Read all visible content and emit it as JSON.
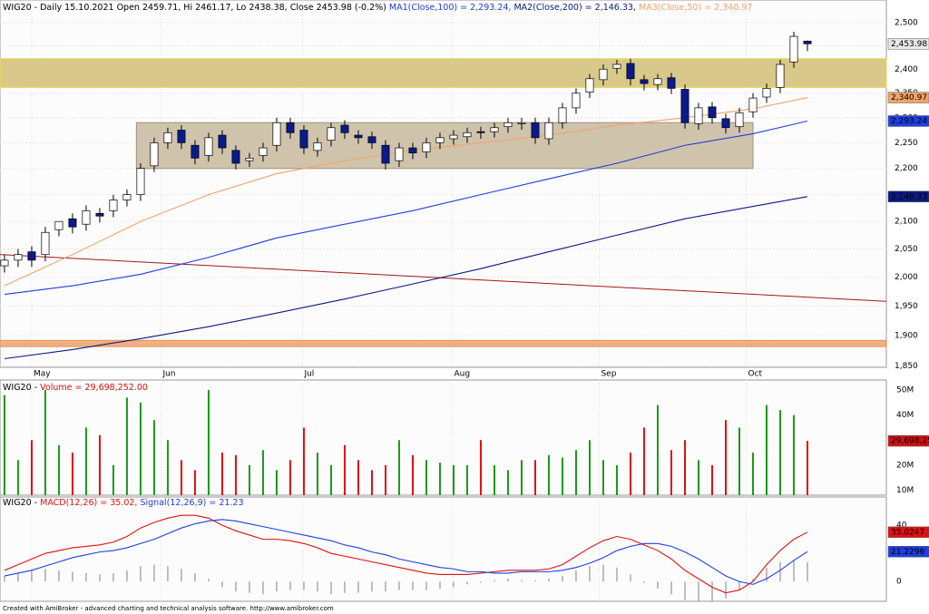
{
  "chart_data": [
    {
      "type": "candlestick",
      "title": "WIG20 - Daily 15.10.2021 Open 2459.71, Hi 2461.17, Lo 2438.38, Close 2453.98 (-0.2%)",
      "log_scale": true,
      "grid": true,
      "xlim": [
        -0.33,
        64.8
      ],
      "xticks": [
        {
          "value": 2,
          "label": "May"
        },
        {
          "value": 11.5,
          "label": "Jun"
        },
        {
          "value": 21.9,
          "label": "Jul"
        },
        {
          "value": 32.9,
          "label": "Aug"
        },
        {
          "value": 43.7,
          "label": "Sep"
        },
        {
          "value": 54.5,
          "label": "Oct"
        }
      ],
      "ylim": [
        1848,
        2550
      ],
      "yticks": [
        {
          "value": 1850,
          "label": "1,850"
        },
        {
          "value": 1900,
          "label": "1,900"
        },
        {
          "value": 1950,
          "label": "1,950"
        },
        {
          "value": 2000,
          "label": "2,000"
        },
        {
          "value": 2050,
          "label": "2,050"
        },
        {
          "value": 2100,
          "label": "2,100"
        },
        {
          "value": 2150,
          "label": "2,150"
        },
        {
          "value": 2200,
          "label": "2,200"
        },
        {
          "value": 2250,
          "label": "2,250"
        },
        {
          "value": 2300,
          "label": "2,300"
        },
        {
          "value": 2350,
          "label": "2,350"
        },
        {
          "value": 2400,
          "label": "2,400"
        },
        {
          "value": 2450,
          "label": "2,450"
        },
        {
          "value": 2500,
          "label": "2,500"
        }
      ],
      "up_color": "#ffffff",
      "down_color": "#0a1a8c",
      "x": [
        0,
        1,
        2,
        3,
        4,
        5,
        6,
        7,
        8,
        9,
        10,
        11,
        12,
        13,
        14,
        15,
        16,
        17,
        18,
        19,
        20,
        21,
        22,
        23,
        24,
        25,
        26,
        27,
        28,
        29,
        30,
        31,
        32,
        33,
        34,
        35,
        36,
        37,
        38,
        39,
        40,
        41,
        42,
        43,
        44,
        45,
        46,
        47,
        48,
        49,
        50,
        51,
        52,
        53,
        54,
        55,
        56,
        57,
        58,
        59
      ],
      "open": [
        2020,
        2030,
        2045,
        2040,
        2085,
        2105,
        2095,
        2115,
        2120,
        2140,
        2150,
        2205,
        2250,
        2275,
        2245,
        2225,
        2265,
        2235,
        2215,
        2225,
        2245,
        2290,
        2275,
        2235,
        2255,
        2285,
        2265,
        2262,
        2245,
        2215,
        2240,
        2232,
        2250,
        2258,
        2262,
        2272,
        2272,
        2282,
        2288,
        2290,
        2258,
        2290,
        2320,
        2352,
        2378,
        2402,
        2412,
        2378,
        2368,
        2382,
        2358,
        2288,
        2322,
        2298,
        2282,
        2312,
        2342,
        2362,
        2415,
        2459.71
      ],
      "high": [
        2040,
        2050,
        2055,
        2090,
        2095,
        2115,
        2130,
        2125,
        2150,
        2160,
        2210,
        2260,
        2280,
        2285,
        2255,
        2270,
        2275,
        2245,
        2230,
        2250,
        2300,
        2300,
        2285,
        2260,
        2290,
        2295,
        2275,
        2272,
        2255,
        2250,
        2250,
        2260,
        2270,
        2275,
        2280,
        2282,
        2290,
        2300,
        2300,
        2300,
        2300,
        2330,
        2360,
        2390,
        2410,
        2420,
        2422,
        2388,
        2390,
        2392,
        2368,
        2330,
        2332,
        2308,
        2320,
        2350,
        2370,
        2420,
        2480,
        2461.17
      ],
      "low": [
        2008,
        2018,
        2018,
        2028,
        2073,
        2078,
        2083,
        2098,
        2108,
        2128,
        2138,
        2193,
        2238,
        2238,
        2208,
        2213,
        2228,
        2198,
        2203,
        2213,
        2233,
        2258,
        2228,
        2223,
        2243,
        2258,
        2248,
        2238,
        2198,
        2203,
        2218,
        2220,
        2238,
        2246,
        2250,
        2258,
        2260,
        2270,
        2276,
        2248,
        2246,
        2278,
        2308,
        2340,
        2366,
        2390,
        2366,
        2356,
        2356,
        2348,
        2278,
        2276,
        2288,
        2268,
        2270,
        2300,
        2330,
        2350,
        2403,
        2438.38
      ],
      "close": [
        2030,
        2040,
        2030,
        2080,
        2100,
        2090,
        2120,
        2110,
        2140,
        2150,
        2200,
        2250,
        2270,
        2250,
        2220,
        2260,
        2240,
        2210,
        2220,
        2240,
        2290,
        2270,
        2240,
        2250,
        2280,
        2270,
        2260,
        2250,
        2210,
        2240,
        2230,
        2250,
        2260,
        2265,
        2270,
        2270,
        2280,
        2290,
        2290,
        2260,
        2290,
        2320,
        2350,
        2380,
        2400,
        2410,
        2380,
        2370,
        2380,
        2360,
        2290,
        2320,
        2300,
        2280,
        2310,
        2340,
        2360,
        2410,
        2470,
        2453.98
      ],
      "close_label": "2,453.98",
      "series": [
        {
          "name": "MA1(Close,100) = 2,293.24,",
          "color": "#1f3ee0",
          "end_label": "2,293.24",
          "x": [
            0,
            5,
            10,
            15,
            20,
            25,
            30,
            35,
            40,
            45,
            50,
            55,
            59
          ],
          "values": [
            1970,
            1985,
            2005,
            2035,
            2070,
            2095,
            2120,
            2150,
            2180,
            2210,
            2245,
            2268,
            2293.24
          ]
        },
        {
          "name": "MA2(Close,200) = 2,146.33,",
          "color": "#0d1a80",
          "end_label": "2,146.33",
          "x": [
            0,
            5,
            10,
            15,
            20,
            25,
            30,
            35,
            40,
            45,
            50,
            55,
            59
          ],
          "values": [
            1862,
            1877,
            1895,
            1915,
            1938,
            1962,
            1988,
            2015,
            2045,
            2075,
            2105,
            2128,
            2146.33
          ]
        },
        {
          "name": "MA3(Close,50) = 2,340.97",
          "color": "#f2a36a",
          "end_label": "2,340.97",
          "x": [
            0,
            5,
            10,
            15,
            20,
            25,
            30,
            35,
            40,
            45,
            50,
            55,
            59
          ],
          "values": [
            1985,
            2040,
            2100,
            2150,
            2190,
            2215,
            2235,
            2250,
            2265,
            2285,
            2300,
            2318,
            2340.97
          ]
        }
      ],
      "trendline": {
        "color": "#a01818",
        "x": [
          -0.33,
          64.8
        ],
        "values": [
          2040,
          1958
        ]
      },
      "zones": [
        {
          "color": "#d8c98a",
          "edge": "#e8d860",
          "x": [
            -0.33,
            64.8
          ],
          "low": 2362,
          "high": 2422
        },
        {
          "color": "#cfc3ac",
          "edge": "#a89c86",
          "x": [
            9.7,
            55
          ],
          "low": 2200,
          "high": 2290
        },
        {
          "color": "#f0b080",
          "edge": "#e89860",
          "x": [
            -0.33,
            64.8
          ],
          "low": 1882,
          "high": 1892
        }
      ]
    },
    {
      "type": "bar",
      "title": "WIG20 - ",
      "series": [
        {
          "name": "Volume = 29,698,252.00",
          "color": "#d01010",
          "up_color": "#1a9a1a",
          "down_color": "#e01010",
          "values": [
            48000000,
            22000000,
            30000000,
            50000000,
            28000000,
            25000000,
            35000000,
            32000000,
            20000000,
            47000000,
            45000000,
            38000000,
            30000000,
            22000000,
            18000000,
            50000000,
            25000000,
            24000000,
            20000000,
            26000000,
            18000000,
            22000000,
            35000000,
            25000000,
            20000000,
            28000000,
            22000000,
            18000000,
            20000000,
            30000000,
            24000000,
            22000000,
            21000000,
            20000000,
            20000000,
            30000000,
            20000000,
            18000000,
            22000000,
            22000000,
            24000000,
            23000000,
            26000000,
            30000000,
            22000000,
            20000000,
            25000000,
            35000000,
            44000000,
            26000000,
            30000000,
            22000000,
            20000000,
            38000000,
            35000000,
            25000000,
            44000000,
            42000000,
            40000000,
            29698252
          ],
          "end_label": "29,698,252"
        }
      ],
      "ylim": [
        8000000,
        54000000
      ],
      "yticks": [
        {
          "value": 10000000,
          "label": "10M"
        },
        {
          "value": 20000000,
          "label": "20M"
        },
        {
          "value": 30000000,
          "label": "30M"
        },
        {
          "value": 40000000,
          "label": "40M"
        },
        {
          "value": 50000000,
          "label": "50M"
        }
      ]
    },
    {
      "type": "line",
      "title": "WIG20 - ",
      "ylim": [
        -14,
        60
      ],
      "yticks": [
        0,
        20,
        40
      ],
      "series": [
        {
          "name": "MACD(12,26) = 35.02,",
          "color": "#e01010",
          "end_label": "35.0247",
          "values": [
            8,
            12,
            16,
            20,
            22,
            24,
            25,
            26,
            28,
            32,
            38,
            42,
            45,
            47,
            47,
            45,
            40,
            36,
            33,
            30,
            30,
            29,
            27,
            24,
            20,
            18,
            16,
            14,
            12,
            10,
            8,
            6,
            5,
            5,
            5,
            6,
            7,
            8,
            8,
            8,
            9,
            12,
            18,
            24,
            29,
            32,
            30,
            26,
            22,
            16,
            8,
            2,
            -4,
            -8,
            -6,
            0,
            12,
            22,
            30,
            35.0247
          ]
        },
        {
          "name": "Signal(12,26,9) = 21.23",
          "color": "#1f3ee0",
          "end_label": "21.2296",
          "values": [
            4,
            6,
            8,
            11,
            14,
            17,
            19,
            21,
            22,
            24,
            27,
            30,
            34,
            38,
            41,
            43,
            44,
            43,
            41,
            39,
            37,
            35,
            33,
            31,
            29,
            26,
            24,
            21,
            19,
            16,
            14,
            12,
            10,
            9,
            7,
            7,
            6,
            6,
            7,
            7,
            7,
            8,
            10,
            13,
            17,
            22,
            25,
            27,
            27,
            25,
            21,
            16,
            10,
            4,
            0,
            -2,
            2,
            8,
            15,
            21.2296
          ]
        }
      ],
      "histogram": {
        "color": "#808080",
        "values": [
          4,
          6,
          8,
          9,
          8,
          7,
          6,
          5,
          6,
          8,
          11,
          12,
          11,
          9,
          6,
          2,
          -4,
          -7,
          -8,
          -9,
          -7,
          -6,
          -6,
          -7,
          -9,
          -8,
          -8,
          -7,
          -7,
          -6,
          -6,
          -6,
          -5,
          -4,
          -2,
          -1,
          1,
          2,
          1,
          1,
          2,
          4,
          8,
          11,
          12,
          10,
          5,
          -1,
          -5,
          -9,
          -13,
          -14,
          -14,
          -12,
          -6,
          2,
          10,
          14,
          15,
          13.7951
        ]
      }
    }
  ],
  "footer": "Created with AmiBroker - advanced charting and technical analysis software. http://www.amibroker.com"
}
